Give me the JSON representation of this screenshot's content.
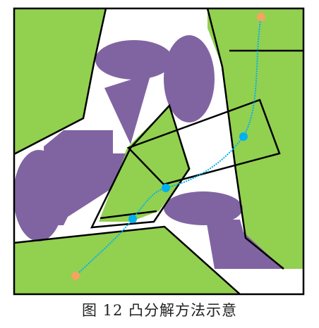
{
  "caption": "图 12 凸分解方法示意",
  "colors": {
    "free_space": "#92d050",
    "obstacle": "#8064a2",
    "boundary": "#000000",
    "path": "#00b0f0",
    "waypoint": "#00b0f0",
    "endpoint": "#f4a460"
  },
  "legend_items": [],
  "icons": [
    "start-point",
    "goal-point",
    "waypoint"
  ]
}
